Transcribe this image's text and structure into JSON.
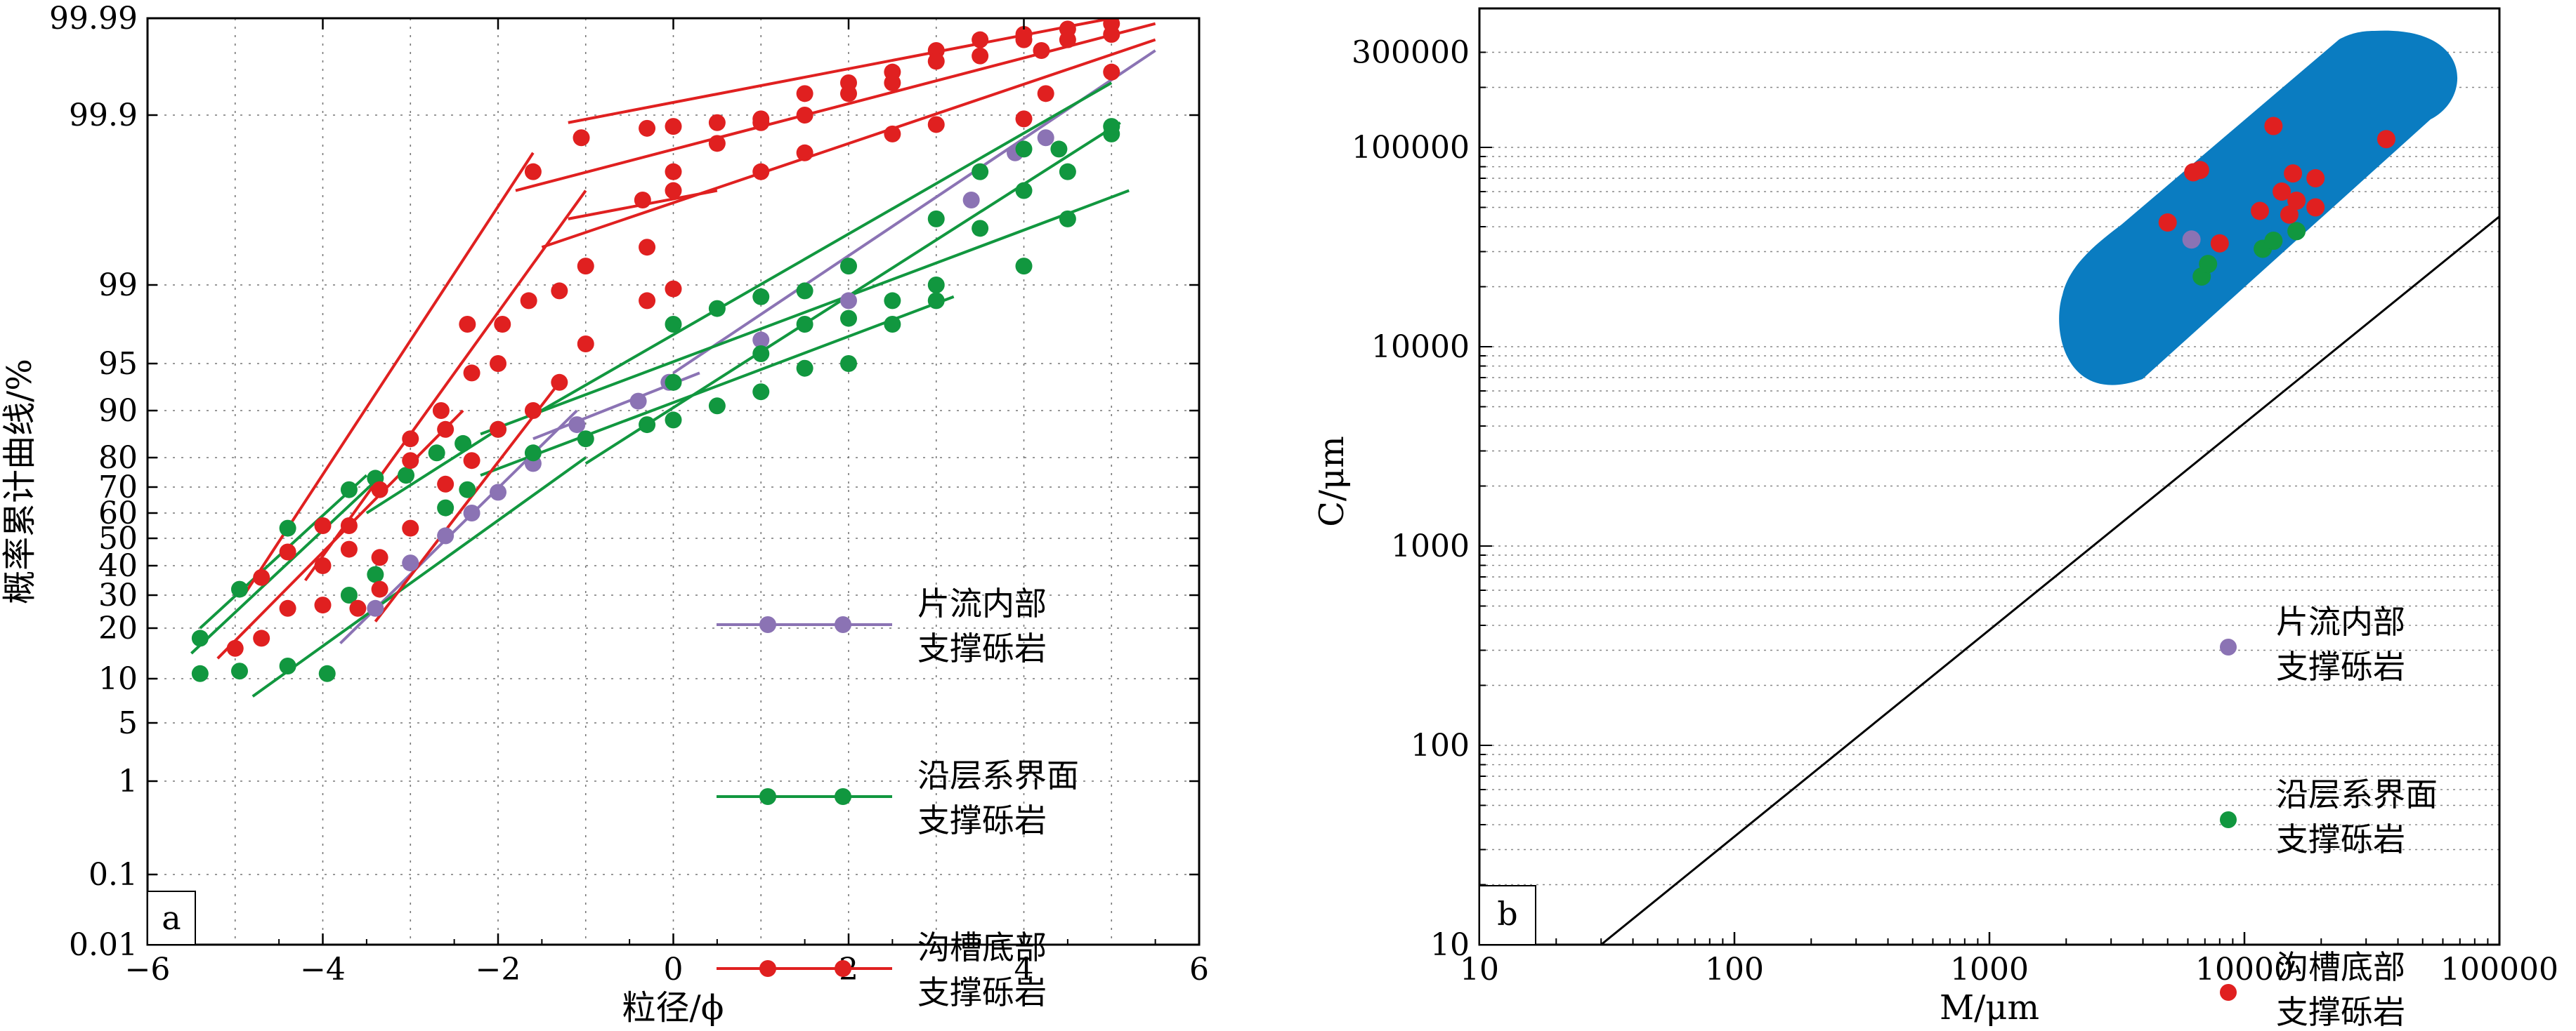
{
  "colors": {
    "purple": "#8b73b4",
    "green": "#11973f",
    "red": "#e02020",
    "region": "#0a7cc1"
  },
  "charts": [
    {
      "id": "a",
      "panel_label": "a",
      "xlabel": "粒径/ϕ",
      "ylabel": "概率累计曲线/%",
      "xticks": [
        "−6",
        "−4",
        "−2",
        "0",
        "2",
        "4",
        "6"
      ],
      "yticks": [
        "99.99",
        "99.9",
        "99",
        "95",
        "90",
        "80",
        "70",
        "60",
        "50",
        "40",
        "30",
        "20",
        "10",
        "5",
        "1",
        "0.1",
        "0.01"
      ],
      "legend": [
        {
          "line1": "片流内部",
          "line2": "支撑砾岩"
        },
        {
          "line1": "沿层系界面",
          "line2": "支撑砾岩"
        },
        {
          "line1": "沟槽底部",
          "line2": "支撑砾岩"
        }
      ]
    },
    {
      "id": "b",
      "panel_label": "b",
      "xlabel": "M/μm",
      "ylabel": "C/μm",
      "xticks": [
        "10",
        "100",
        "1000",
        "10000",
        "100000"
      ],
      "yticks": [
        "300000",
        "100000",
        "10000",
        "1000",
        "100",
        "10"
      ],
      "legend": [
        {
          "line1": "片流内部",
          "line2": "支撑砾岩"
        },
        {
          "line1": "沿层系界面",
          "line2": "支撑砾岩"
        },
        {
          "line1": "沟槽底部",
          "line2": "支撑砾岩"
        }
      ]
    }
  ],
  "chart_data": [
    {
      "type": "line",
      "panel": "a",
      "x_axis": {
        "label": "粒径/ϕ",
        "range": [
          -6,
          6
        ]
      },
      "y_axis": {
        "label": "概率累计曲线/%",
        "scale": "probability",
        "range": [
          0.01,
          99.99
        ]
      },
      "grid": true,
      "legend_position": "bottom-right",
      "series": [
        {
          "name": "片流内部支撑砾岩",
          "color": "purple",
          "points": [
            [
              -3.4,
              26
            ],
            [
              -3.0,
              41
            ],
            [
              -2.6,
              51
            ],
            [
              -2.3,
              60
            ],
            [
              -2.0,
              68
            ],
            [
              -1.6,
              78
            ],
            [
              -1.1,
              87
            ],
            [
              -0.4,
              91
            ],
            [
              -0.05,
              93
            ],
            [
              1.0,
              96.2
            ],
            [
              2.0,
              98.2
            ],
            [
              3.4,
              99.45
            ],
            [
              3.9,
              99.7
            ],
            [
              4.25,
              99.78
            ]
          ],
          "fit_lines": [
            [
              [
                -3.8,
                17
              ],
              [
                -1.1,
                90
              ]
            ],
            [
              [
                -1.6,
                84
              ],
              [
                0.3,
                94
              ]
            ],
            [
              [
                0,
                94
              ],
              [
                5.5,
                99.96
              ]
            ]
          ]
        },
        {
          "name": "沿层系界面支撑砾岩",
          "color": "green",
          "points": [
            [
              -5.4,
              18
            ],
            [
              -4.95,
              32
            ],
            [
              -4.4,
              54
            ],
            [
              -3.7,
              69
            ],
            [
              -3.4,
              73
            ],
            [
              -3.05,
              74
            ],
            [
              -2.7,
              81
            ],
            [
              -2.4,
              83
            ],
            [
              -2.0,
              86
            ],
            [
              -5.4,
              11
            ],
            [
              -4.95,
              11.5
            ],
            [
              -4.4,
              12.5
            ],
            [
              -3.95,
              11
            ],
            [
              -3.7,
              30
            ],
            [
              -3.4,
              37
            ],
            [
              -2.6,
              62
            ],
            [
              -2.35,
              69
            ],
            [
              -1.6,
              81
            ],
            [
              -1.0,
              84
            ],
            [
              -0.3,
              87
            ],
            [
              0.0,
              88
            ],
            [
              0.5,
              90.5
            ],
            [
              1.0,
              92
            ],
            [
              1.5,
              94.5
            ],
            [
              2.0,
              95
            ],
            [
              2.5,
              97
            ],
            [
              3.0,
              98.2
            ],
            [
              4.0,
              99.1
            ],
            [
              4.5,
              99.35
            ],
            [
              0.0,
              97
            ],
            [
              0.5,
              97.8
            ],
            [
              1.0,
              98.4
            ],
            [
              1.5,
              98.7
            ],
            [
              2.0,
              99.1
            ],
            [
              3.0,
              99.35
            ],
            [
              3.5,
              99.6
            ],
            [
              4.0,
              99.72
            ],
            [
              4.5,
              99.6
            ],
            [
              5.0,
              99.8
            ],
            [
              0.0,
              93
            ],
            [
              1.0,
              95.5
            ],
            [
              1.5,
              97
            ],
            [
              2.0,
              97.3
            ],
            [
              2.5,
              98.2
            ],
            [
              3.0,
              99.0
            ],
            [
              3.5,
              99.3
            ],
            [
              4.0,
              99.5
            ],
            [
              4.4,
              99.72
            ],
            [
              5.0,
              99.84
            ]
          ],
          "fit_lines": [
            [
              [
                -5.5,
                15
              ],
              [
                -3.4,
                72
              ]
            ],
            [
              [
                -5.4,
                20
              ],
              [
                -3.5,
                74
              ]
            ],
            [
              [
                -3.5,
                60
              ],
              [
                -2.0,
                86
              ]
            ],
            [
              [
                -2.2,
                85
              ],
              [
                5.2,
                99.5
              ]
            ],
            [
              [
                -4.8,
                8
              ],
              [
                -1.0,
                80
              ]
            ],
            [
              [
                -1.0,
                78
              ],
              [
                5.1,
                99.86
              ]
            ],
            [
              [
                -2.2,
                74
              ],
              [
                3.2,
                98.4
              ]
            ],
            [
              [
                -1.6,
                89
              ],
              [
                5.0,
                99.93
              ]
            ]
          ]
        },
        {
          "name": "沟槽底部支撑砾岩",
          "color": "red",
          "points": [
            [
              -5.0,
              16
            ],
            [
              -4.7,
              18
            ],
            [
              -4.4,
              26
            ],
            [
              -4.0,
              27
            ],
            [
              -3.6,
              26
            ],
            [
              -3.35,
              32
            ],
            [
              -3.0,
              54
            ],
            [
              -2.6,
              71
            ],
            [
              -2.3,
              79
            ],
            [
              -2.0,
              86
            ],
            [
              -1.6,
              90
            ],
            [
              -1.3,
              93
            ],
            [
              -1.0,
              96
            ],
            [
              -0.3,
              98.2
            ],
            [
              0.0,
              98.8
            ],
            [
              -4.7,
              36
            ],
            [
              -4.4,
              45
            ],
            [
              -4.0,
              55
            ],
            [
              -3.7,
              55
            ],
            [
              -3.35,
              69
            ],
            [
              -3.0,
              79
            ],
            [
              -2.6,
              86
            ],
            [
              -2.3,
              94
            ],
            [
              -2.0,
              95
            ],
            [
              -1.65,
              98.2
            ],
            [
              -1.3,
              98.7
            ],
            [
              -1.0,
              99.1
            ],
            [
              -0.3,
              99.2
            ],
            [
              0.0,
              99.6
            ],
            [
              0.5,
              99.75
            ],
            [
              1.0,
              99.86
            ],
            [
              1.5,
              99.92
            ],
            [
              2.0,
              99.93
            ],
            [
              2.5,
              99.94
            ],
            [
              3.0,
              99.96
            ],
            [
              3.5,
              99.97
            ],
            [
              4.0,
              99.975
            ],
            [
              4.5,
              99.98
            ],
            [
              5.0,
              99.985
            ],
            [
              -4.0,
              40
            ],
            [
              -3.7,
              46
            ],
            [
              -3.35,
              43
            ],
            [
              -3.0,
              84
            ],
            [
              -2.65,
              90
            ],
            [
              -2.35,
              97
            ],
            [
              -1.95,
              97
            ],
            [
              -1.6,
              99.6
            ],
            [
              -1.05,
              99.78
            ],
            [
              -0.3,
              99.83
            ],
            [
              0.0,
              99.84
            ],
            [
              0.5,
              99.86
            ],
            [
              1.0,
              99.88
            ],
            [
              1.5,
              99.9
            ],
            [
              2.0,
              99.92
            ],
            [
              2.5,
              99.93
            ],
            [
              3.0,
              99.95
            ],
            [
              3.5,
              99.955
            ],
            [
              4.0,
              99.97
            ],
            [
              4.2,
              99.96
            ],
            [
              4.5,
              99.97
            ],
            [
              5.0,
              99.975
            ],
            [
              -0.35,
              99.45
            ],
            [
              0.0,
              99.5
            ],
            [
              1.0,
              99.6
            ],
            [
              1.5,
              99.7
            ],
            [
              2.5,
              99.8
            ],
            [
              3.0,
              99.85
            ],
            [
              4.0,
              99.88
            ],
            [
              4.25,
              99.92
            ],
            [
              5.0,
              99.94
            ]
          ],
          "fit_lines": [
            [
              [
                -5.2,
                14
              ],
              [
                -2.4,
                90
              ]
            ],
            [
              [
                -4.9,
                30
              ],
              [
                -1.6,
                99.7
              ]
            ],
            [
              [
                -4.2,
                35
              ],
              [
                -1.0,
                99.5
              ]
            ],
            [
              [
                -3.4,
                22
              ],
              [
                -1.3,
                93
              ]
            ],
            [
              [
                -1.8,
                99.5
              ],
              [
                5.5,
                99.985
              ]
            ],
            [
              [
                -1.2,
                99.86
              ],
              [
                5.0,
                99.99
              ]
            ],
            [
              [
                -1.5,
                99.2
              ],
              [
                5.5,
                99.97
              ]
            ],
            [
              [
                -1.2,
                99.35
              ],
              [
                0.5,
                99.5
              ]
            ]
          ]
        }
      ]
    },
    {
      "type": "scatter",
      "panel": "b",
      "x_axis": {
        "label": "M/μm",
        "scale": "log",
        "range": [
          10,
          100000
        ]
      },
      "y_axis": {
        "label": "C/μm",
        "scale": "log",
        "range": [
          10,
          300000
        ]
      },
      "reference_line": [
        [
          30,
          10
        ],
        [
          100000,
          45000
        ]
      ],
      "shaded_region": "blue rounded band containing all points, roughly M 2000–50000 μm, C 8000–300000 μm",
      "legend_position": "bottom-right",
      "series": [
        {
          "name": "片流内部支撑砾岩",
          "color": "purple",
          "points": [
            [
              6200,
              34500
            ]
          ]
        },
        {
          "name": "沿层系界面支撑砾岩",
          "color": "green",
          "points": [
            [
              6800,
              22500
            ],
            [
              7200,
              26000
            ],
            [
              11800,
              31000
            ],
            [
              13000,
              34000
            ],
            [
              16000,
              38000
            ]
          ]
        },
        {
          "name": "沟槽底部支撑砾岩",
          "color": "red",
          "points": [
            [
              6300,
              75000
            ],
            [
              6700,
              77000
            ],
            [
              5000,
              42000
            ],
            [
              8000,
              33000
            ],
            [
              11500,
              48000
            ],
            [
              13000,
              128000
            ],
            [
              14000,
              60000
            ],
            [
              15000,
              46000
            ],
            [
              15500,
              74000
            ],
            [
              16000,
              54000
            ],
            [
              19000,
              50000
            ],
            [
              19000,
              70000
            ],
            [
              36000,
              110000
            ]
          ]
        }
      ]
    }
  ]
}
